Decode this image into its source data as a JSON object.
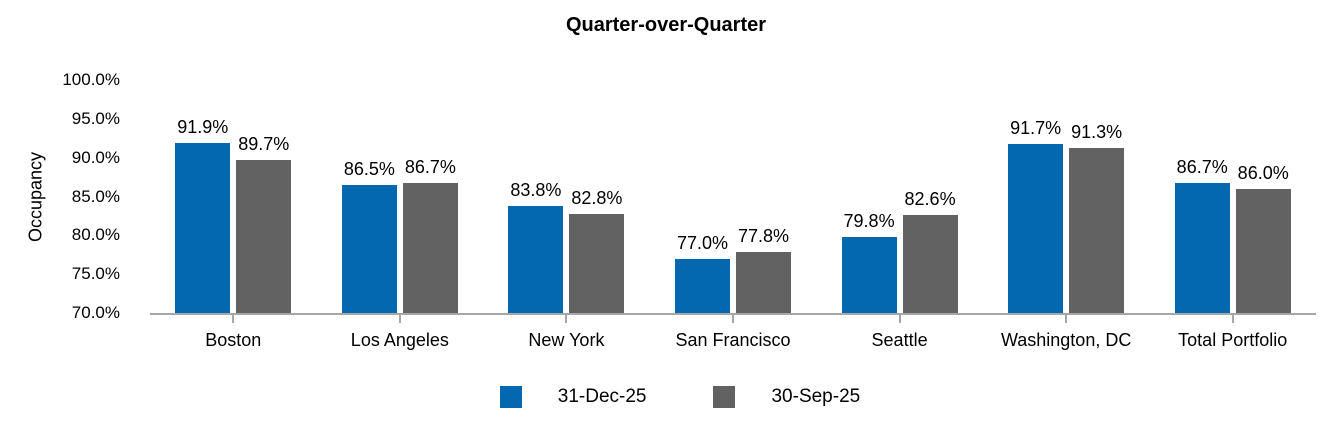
{
  "title": "Quarter-over-Quarter",
  "colors": {
    "series_blue": "#0468B1",
    "series_gray": "#626262",
    "axis_line": "#A6A6A6",
    "text": "#000000",
    "background": "#FFFFFF"
  },
  "chart_data": {
    "type": "bar",
    "title": "Quarter-over-Quarter",
    "xlabel": "",
    "ylabel": "Occupancy",
    "ylim": [
      70,
      100
    ],
    "yticks": [
      "100.0%",
      "95.0%",
      "90.0%",
      "85.0%",
      "80.0%",
      "75.0%",
      "70.0%"
    ],
    "grid": false,
    "legend_position": "bottom",
    "categories": [
      "Boston",
      "Los Angeles",
      "New York",
      "San Francisco",
      "Seattle",
      "Washington, DC",
      "Total Portfolio"
    ],
    "series": [
      {
        "name": "31-Dec-25",
        "color": "#0468B1",
        "values": [
          91.9,
          86.5,
          83.8,
          77.0,
          79.8,
          91.7,
          86.7
        ],
        "labels": [
          "91.9%",
          "86.5%",
          "83.8%",
          "77.0%",
          "79.8%",
          "91.7%",
          "86.7%"
        ]
      },
      {
        "name": "30-Sep-25",
        "color": "#626262",
        "values": [
          89.7,
          86.7,
          82.8,
          77.8,
          82.6,
          91.3,
          86.0
        ],
        "labels": [
          "89.7%",
          "86.7%",
          "82.8%",
          "77.8%",
          "82.6%",
          "91.3%",
          "86.0%"
        ]
      }
    ]
  }
}
